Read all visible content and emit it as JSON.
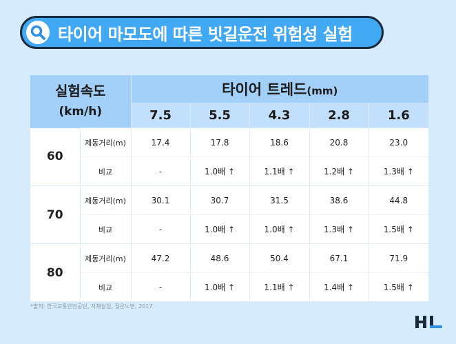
{
  "title": "타이어 마모도에 따른 빗길운전 위험성 실험",
  "colors": {
    "title_bg": "#41a8f3",
    "title_border": "#1b2a3d",
    "page_bg": "#d6ebfb",
    "header_bg": "#a3d0f8",
    "subheader_bg": "#c2e0fb"
  },
  "icons": {
    "title": "search-icon",
    "logo": "hl-logo"
  },
  "table": {
    "speed_header": "실험속도",
    "speed_unit": "(km/h)",
    "tread_header": "타이어 트레드",
    "tread_unit": "(mm)",
    "tread_columns": [
      "7.5",
      "5.5",
      "4.3",
      "2.8",
      "1.6"
    ],
    "groups": [
      {
        "speed": "60",
        "rows": [
          {
            "label": "제동거리(m)",
            "values": [
              "17.4",
              "17.8",
              "18.6",
              "20.8",
              "23.0"
            ]
          },
          {
            "label": "비교",
            "values": [
              "-",
              "1.0배 ↑",
              "1.1배 ↑",
              "1.2배 ↑",
              "1.3배 ↑"
            ]
          }
        ]
      },
      {
        "speed": "70",
        "rows": [
          {
            "label": "제동거리(m)",
            "values": [
              "30.1",
              "30.7",
              "31.5",
              "38.6",
              "44.8"
            ]
          },
          {
            "label": "비교",
            "values": [
              "-",
              "1.0배 ↑",
              "1.0배 ↑",
              "1.3배 ↑",
              "1.5배 ↑"
            ]
          }
        ]
      },
      {
        "speed": "80",
        "rows": [
          {
            "label": "제동거리(m)",
            "values": [
              "47.2",
              "48.6",
              "50.4",
              "67.1",
              "71.9"
            ]
          },
          {
            "label": "비교",
            "values": [
              "-",
              "1.0배 ↑",
              "1.1배 ↑",
              "1.4배 ↑",
              "1.5배 ↑"
            ]
          }
        ]
      }
    ]
  },
  "source": "*출처: 한국교통안전공단, 자체실험, 젖은노면, 2017"
}
